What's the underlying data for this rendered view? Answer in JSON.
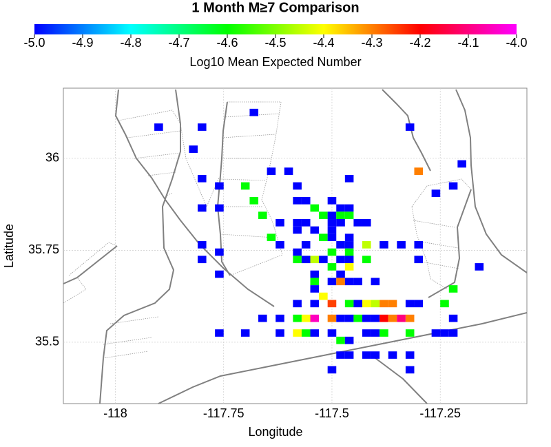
{
  "chart_data": {
    "type": "heatmap",
    "title": "1 Month M≥7 Comparison",
    "colorbar_label": "Log10 Mean Expected Number",
    "x_label": "Longitude",
    "y_label": "Latitude",
    "colormap": [
      "#0000ff",
      "#00ffff",
      "#00ff00",
      "#ffff00",
      "#ff0000",
      "#ff00ff"
    ],
    "clim": [
      -5,
      -4
    ],
    "cticks": [
      {
        "value": -5,
        "label": "-5.0"
      },
      {
        "value": -4.9,
        "label": "-4.9"
      },
      {
        "value": -4.8,
        "label": "-4.8"
      },
      {
        "value": -4.7,
        "label": "-4.7"
      },
      {
        "value": -4.6,
        "label": "-4.6"
      },
      {
        "value": -4.5,
        "label": "-4.5"
      },
      {
        "value": -4.4,
        "label": "-4.4"
      },
      {
        "value": -4.3,
        "label": "-4.3"
      },
      {
        "value": -4.2,
        "label": "-4.2"
      },
      {
        "value": -4.1,
        "label": "-4.1"
      },
      {
        "value": -4,
        "label": "-4.0"
      }
    ],
    "xlim": [
      -118.12,
      -117.05
    ],
    "ylim": [
      35.333,
      36.191
    ],
    "xticks": [
      -118,
      -117.75,
      -117.5,
      -117.25
    ],
    "yticks": [
      35.5,
      35.75,
      36
    ],
    "grid": true,
    "cell_size": [
      0.02,
      0.02
    ],
    "x": [
      -117.68,
      -117.9,
      -117.8,
      -117.32,
      -117.82,
      -117.2,
      -117.64,
      -117.6,
      -117.3,
      -117.8,
      -117.46,
      -117.76,
      -117.7,
      -117.58,
      -117.22,
      -117.26,
      -117.68,
      -117.58,
      -117.56,
      -117.5,
      -117.8,
      -117.76,
      -117.54,
      -117.48,
      -117.46,
      -117.66,
      -117.52,
      -117.5,
      -117.48,
      -117.46,
      -117.62,
      -117.58,
      -117.56,
      -117.5,
      -117.48,
      -117.44,
      -117.42,
      -117.58,
      -117.54,
      -117.5,
      -117.64,
      -117.52,
      -117.5,
      -117.46,
      -117.8,
      -117.62,
      -117.56,
      -117.48,
      -117.46,
      -117.42,
      -117.38,
      -117.34,
      -117.3,
      -117.76,
      -117.58,
      -117.5,
      -117.46,
      -117.8,
      -117.58,
      -117.56,
      -117.54,
      -117.52,
      -117.48,
      -117.46,
      -117.42,
      -117.3,
      -117.5,
      -117.46,
      -117.16,
      -117.76,
      -117.54,
      -117.48,
      -117.54,
      -117.5,
      -117.48,
      -117.46,
      -117.44,
      -117.4,
      -117.54,
      -117.22,
      -117.52,
      -117.58,
      -117.54,
      -117.5,
      -117.46,
      -117.44,
      -117.42,
      -117.4,
      -117.38,
      -117.36,
      -117.32,
      -117.3,
      -117.24,
      -117.66,
      -117.62,
      -117.58,
      -117.56,
      -117.54,
      -117.5,
      -117.48,
      -117.46,
      -117.44,
      -117.42,
      -117.4,
      -117.38,
      -117.36,
      -117.34,
      -117.32,
      -117.22,
      -117.76,
      -117.7,
      -117.62,
      -117.58,
      -117.56,
      -117.54,
      -117.5,
      -117.42,
      -117.4,
      -117.38,
      -117.32,
      -117.26,
      -117.24,
      -117.22,
      -117.48,
      -117.46,
      -117.48,
      -117.46,
      -117.42,
      -117.4,
      -117.36,
      -117.32,
      -117.5,
      -117.32
    ],
    "y": [
      36.125,
      36.085,
      36.085,
      36.085,
      36.025,
      35.985,
      35.965,
      35.965,
      35.965,
      35.945,
      35.945,
      35.925,
      35.925,
      35.925,
      35.925,
      35.905,
      35.885,
      35.885,
      35.885,
      35.885,
      35.865,
      35.865,
      35.865,
      35.865,
      35.865,
      35.845,
      35.845,
      35.845,
      35.845,
      35.845,
      35.825,
      35.825,
      35.825,
      35.825,
      35.825,
      35.825,
      35.825,
      35.805,
      35.805,
      35.805,
      35.785,
      35.785,
      35.785,
      35.785,
      35.765,
      35.765,
      35.765,
      35.765,
      35.765,
      35.765,
      35.765,
      35.765,
      35.765,
      35.745,
      35.745,
      35.745,
      35.745,
      35.725,
      35.725,
      35.725,
      35.725,
      35.725,
      35.725,
      35.725,
      35.725,
      35.725,
      35.705,
      35.705,
      35.705,
      35.685,
      35.685,
      35.685,
      35.665,
      35.665,
      35.665,
      35.665,
      35.665,
      35.665,
      35.645,
      35.645,
      35.625,
      35.605,
      35.605,
      35.605,
      35.605,
      35.605,
      35.605,
      35.605,
      35.605,
      35.605,
      35.605,
      35.605,
      35.605,
      35.565,
      35.565,
      35.565,
      35.565,
      35.565,
      35.565,
      35.565,
      35.565,
      35.565,
      35.565,
      35.565,
      35.565,
      35.565,
      35.565,
      35.565,
      35.565,
      35.525,
      35.525,
      35.525,
      35.525,
      35.525,
      35.525,
      35.525,
      35.525,
      35.525,
      35.525,
      35.525,
      35.525,
      35.525,
      35.525,
      35.505,
      35.505,
      35.465,
      35.465,
      35.465,
      35.465,
      35.465,
      35.465,
      35.425,
      35.425
    ],
    "values": [
      -5,
      -5,
      -5,
      -5,
      -5,
      -5,
      -5,
      -5,
      -4.3,
      -5,
      -5,
      -5,
      -4.6,
      -5,
      -5,
      -5,
      -4.6,
      -5,
      -5,
      -5,
      -5,
      -5,
      -4.6,
      -5,
      -5,
      -4.6,
      -4.6,
      -5,
      -4.6,
      -4.6,
      -5,
      -5,
      -5,
      -5,
      -5,
      -5,
      -5,
      -5,
      -5,
      -5,
      -4.6,
      -4.6,
      -5,
      -5,
      -5,
      -5,
      -5,
      -5,
      -5,
      -4.45,
      -5,
      -5,
      -5,
      -5,
      -5,
      -4.6,
      -4.6,
      -5,
      -4.6,
      -5,
      -4.45,
      -5,
      -5,
      -5,
      -4.6,
      -5,
      -4.6,
      -4.4,
      -5,
      -5,
      -5,
      -5,
      -4.6,
      -5,
      -4.3,
      -5,
      -5,
      -5,
      -5,
      -4.6,
      -4.4,
      -5,
      -5,
      -4.25,
      -4.6,
      -5,
      -4.4,
      -4.45,
      -4.3,
      -4.3,
      -5,
      -5,
      -4.6,
      -5,
      -5,
      -4.6,
      -4.4,
      -4.05,
      -4.3,
      -5,
      -5,
      -4.6,
      -5,
      -5,
      -4.2,
      -4.3,
      -4.1,
      -4.3,
      -5,
      -5,
      -5,
      -5,
      -4.4,
      -4.6,
      -5,
      -5,
      -5,
      -5,
      -4.6,
      -4.6,
      -5,
      -5,
      -5,
      -4.6,
      -5,
      -5,
      -5,
      -5,
      -5,
      -5,
      -5,
      -5,
      -5
    ]
  }
}
